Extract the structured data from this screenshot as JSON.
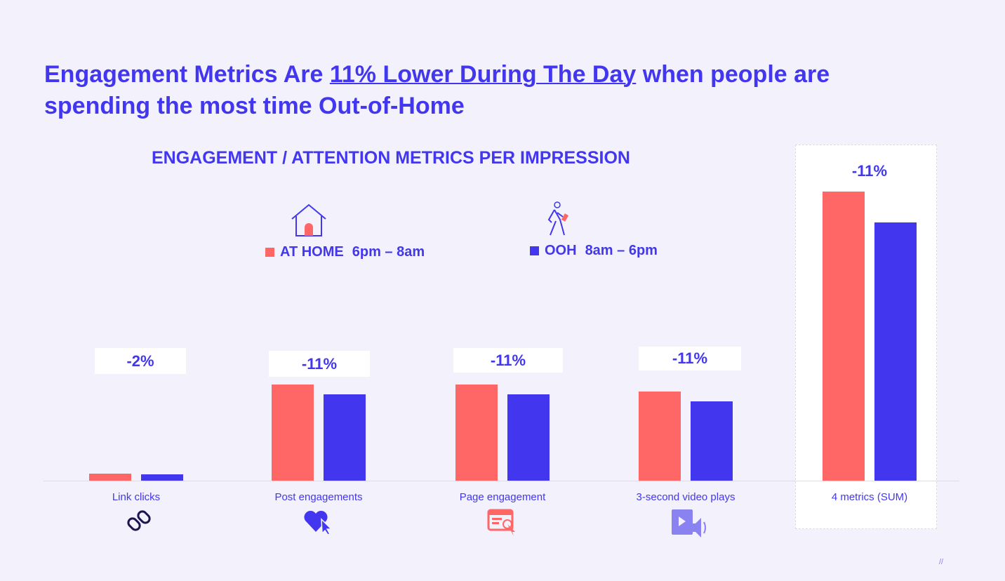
{
  "title": {
    "pre": "Engagement Metrics Are ",
    "highlight": "11% Lower During The Day",
    "post": " when people are spending the most time Out-of-Home"
  },
  "footer_mark": "//",
  "colors": {
    "home": "#ff6766",
    "ooh": "#4237ee",
    "text": "#4237ee"
  },
  "legend": [
    {
      "label": "AT HOME",
      "time": "6pm – 8am",
      "icon": "house-icon"
    },
    {
      "label": "OOH",
      "time": "8am – 6pm",
      "icon": "walking-person-icon"
    }
  ],
  "chart_data": {
    "type": "bar",
    "title": "ENGAGEMENT / ATTENTION METRICS PER IMPRESSION",
    "categories": [
      "Link clicks",
      "Post engagements",
      "Page engagement",
      "3-second video plays",
      "4 metrics (SUM)"
    ],
    "category_icons": [
      "broken-link-icon",
      "heart-cursor-icon",
      "webpage-click-icon",
      "video-sound-icon",
      ""
    ],
    "series": [
      {
        "name": "AT HOME",
        "values": [
          10,
          137,
          137,
          127,
          412
        ]
      },
      {
        "name": "OOH",
        "values": [
          9,
          123,
          123,
          113,
          368
        ]
      }
    ],
    "annotations": [
      "-2%",
      "-11%",
      "-11%",
      "-11%",
      "-11%"
    ],
    "ylim": [
      0,
      412
    ],
    "xlabel": "",
    "ylabel": "",
    "grid": false,
    "legend_position": "top-center"
  }
}
